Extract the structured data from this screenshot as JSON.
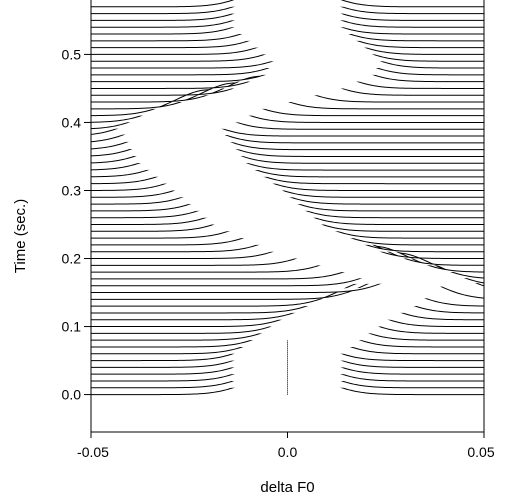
{
  "chart_data": {
    "type": "line",
    "title": "",
    "xlabel": "delta F0",
    "ylabel": "Time (sec.)",
    "xlim": [
      -0.05,
      0.05
    ],
    "ylim": [
      -0.055,
      0.58
    ],
    "xticks": [
      -0.05,
      0.0,
      0.05
    ],
    "xtick_labels": [
      "-0.05",
      "0.0",
      "0.05"
    ],
    "yticks": [
      0.0,
      0.1,
      0.2,
      0.3,
      0.4,
      0.5
    ],
    "ytick_labels": [
      "0.0",
      "0.1",
      "0.2",
      "0.3",
      "0.4",
      "0.5"
    ],
    "grid": false,
    "legend": "none",
    "waterfall": {
      "time_start": 0.0,
      "time_step": 0.01,
      "trace_count": 58,
      "peak_height": 0.038,
      "peak_width": 0.0085,
      "peaks": [
        {
          "time": 0.0,
          "delta_f0": 0.0
        },
        {
          "time": 0.05,
          "delta_f0": 0.0
        },
        {
          "time": 0.08,
          "delta_f0": 0.007
        },
        {
          "time": 0.1,
          "delta_f0": 0.012
        },
        {
          "time": 0.13,
          "delta_f0": 0.022
        },
        {
          "time": 0.15,
          "delta_f0": 0.036
        },
        {
          "time": 0.17,
          "delta_f0": 0.028
        },
        {
          "time": 0.2,
          "delta_f0": 0.01
        },
        {
          "time": 0.24,
          "delta_f0": -0.005
        },
        {
          "time": 0.29,
          "delta_f0": -0.015
        },
        {
          "time": 0.33,
          "delta_f0": -0.024
        },
        {
          "time": 0.38,
          "delta_f0": -0.03
        },
        {
          "time": 0.41,
          "delta_f0": -0.02
        },
        {
          "time": 0.44,
          "delta_f0": 0.0
        },
        {
          "time": 0.46,
          "delta_f0": 0.008
        },
        {
          "time": 0.48,
          "delta_f0": 0.01
        },
        {
          "time": 0.53,
          "delta_f0": 0.0
        },
        {
          "time": 0.57,
          "delta_f0": 0.0
        }
      ]
    }
  },
  "marker": {
    "label_x": 0.0,
    "from_time": 0.0,
    "to_time": 0.08
  }
}
